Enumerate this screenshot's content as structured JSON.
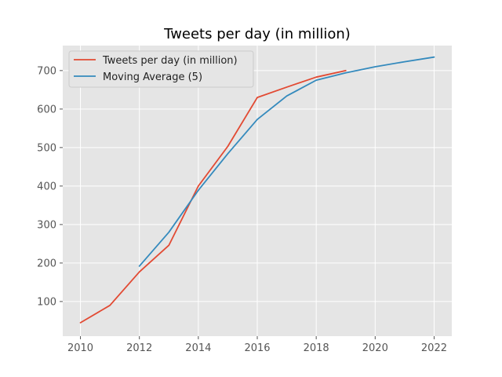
{
  "chart_data": {
    "type": "line",
    "title": "Tweets per day (in million)",
    "xlabel": "",
    "ylabel": "",
    "xlim": [
      2009.4,
      2022.6
    ],
    "ylim": [
      10,
      765
    ],
    "xticks": [
      2010,
      2012,
      2014,
      2016,
      2018,
      2020,
      2022
    ],
    "yticks": [
      100,
      200,
      300,
      400,
      500,
      600,
      700
    ],
    "grid": true,
    "legend_position": "top-left",
    "background": "#e5e5e5",
    "series": [
      {
        "name": "Tweets per day (in million)",
        "color": "#e24a33",
        "x": [
          2010,
          2011,
          2012,
          2013,
          2014,
          2015,
          2016,
          2017,
          2018,
          2019
        ],
        "y": [
          45,
          90,
          177,
          246,
          400,
          503,
          630,
          657,
          683,
          700
        ]
      },
      {
        "name": "Moving Average (5)",
        "color": "#348abd",
        "x": [
          2012,
          2013,
          2014,
          2015,
          2016,
          2017,
          2018,
          2019,
          2020,
          2021,
          2022
        ],
        "y": [
          192,
          280,
          389,
          484,
          573,
          634,
          675,
          694,
          710,
          723,
          735
        ]
      }
    ]
  }
}
